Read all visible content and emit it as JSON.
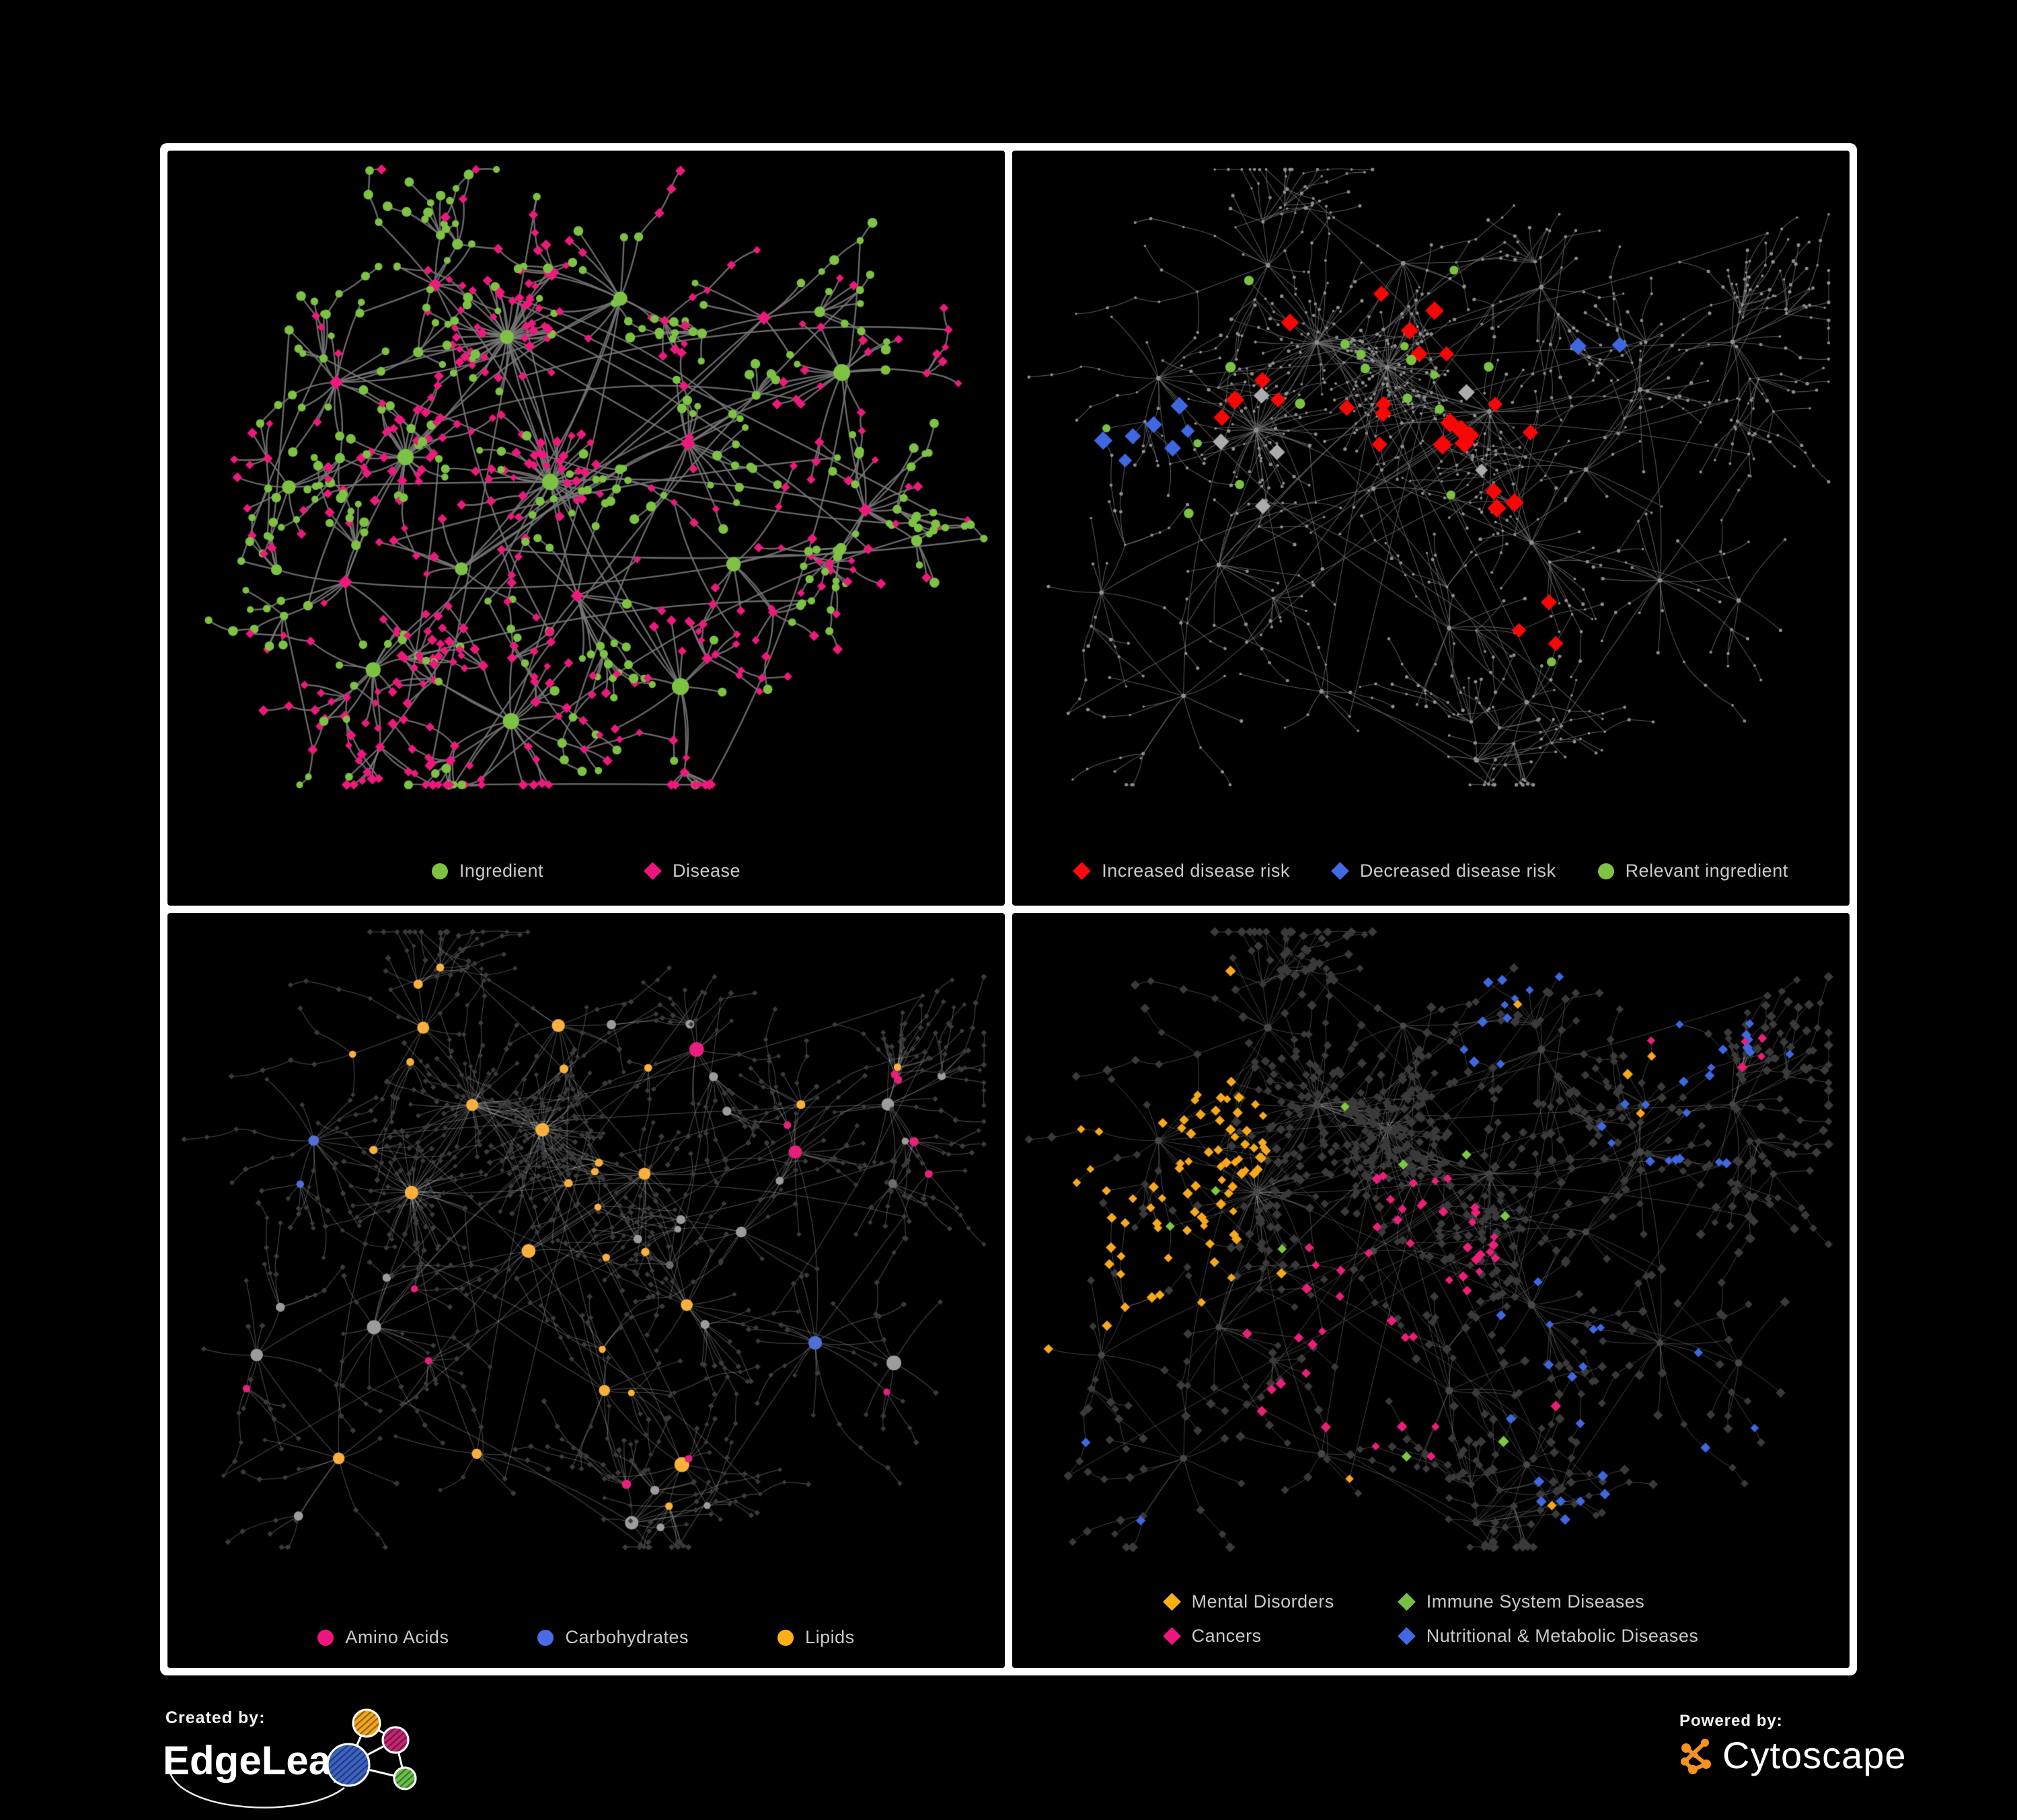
{
  "branding": {
    "created_by": "Created by:",
    "edgeleap_name": "EdgeLeap",
    "powered_by": "Powered by:",
    "cytoscape_name": "Cytoscape",
    "cytoscape_orange": "#F6921E",
    "edgeleap_node_colors": {
      "blue": "#3B62C4",
      "orange": "#F2A71B",
      "pink": "#C52571",
      "green": "#6ABF4B"
    },
    "frame_color": "#ffffff",
    "background": "#000000"
  },
  "panels": [
    {
      "idx": 0,
      "name": "ingredient-disease-network",
      "legend": [
        {
          "shape": "circle",
          "color": "#7DC242",
          "label": "Ingredient"
        },
        {
          "shape": "diamond",
          "color": "#EF157E",
          "label": "Disease"
        }
      ],
      "style": {
        "kind": "bipartite",
        "green": "#7DC242",
        "pink": "#ED197D",
        "hubGreenProb": 0.55,
        "leafOppositeProb": 0.8,
        "edge": {
          "color": "#787878",
          "width": 2.4,
          "alpha": 0.88,
          "curve": 0.14
        }
      },
      "net": {
        "seed": 7,
        "aspect": 1.108,
        "clampY": 0.84,
        "superHubs": 3,
        "kids": [
          6,
          17
        ],
        "superKids": [
          28,
          46
        ],
        "subProb": 0.2,
        "chainProb": 0.38,
        "extraEdges": 26,
        "hubs": [
          [
            0.42,
            0.26
          ],
          [
            0.27,
            0.4
          ],
          [
            0.46,
            0.44
          ],
          [
            0.2,
            0.3
          ],
          [
            0.33,
            0.17
          ],
          [
            0.55,
            0.2
          ],
          [
            0.35,
            0.56
          ],
          [
            0.22,
            0.56
          ],
          [
            0.5,
            0.6
          ],
          [
            0.62,
            0.38
          ],
          [
            0.7,
            0.22
          ],
          [
            0.8,
            0.28
          ],
          [
            0.6,
            0.7
          ],
          [
            0.42,
            0.76
          ],
          [
            0.26,
            0.7
          ],
          [
            0.68,
            0.55
          ],
          [
            0.82,
            0.47
          ],
          [
            0.15,
            0.45
          ]
        ]
      },
      "overlays": []
    },
    {
      "idx": 1,
      "name": "disease-risk-network",
      "legend": [
        {
          "shape": "diamond",
          "color": "#FA0A0A",
          "label": "Increased disease risk"
        },
        {
          "shape": "diamond",
          "color": "#4169E1",
          "label": "Decreased disease risk"
        },
        {
          "shape": "circle",
          "color": "#7DC242",
          "label": "Relevant ingredient"
        }
      ],
      "style": {
        "kind": "risk",
        "dot": "#8F8F8F",
        "edge": {
          "color": "#6E6E6E",
          "width": 1.05,
          "alpha": 0.8,
          "curve": 0.1
        }
      },
      "net": {
        "seed": 23,
        "aspect": 1.108,
        "clampY": 0.84,
        "superHubs": 3,
        "kids": [
          5,
          15
        ],
        "superKids": [
          30,
          52
        ],
        "subProb": 0.24,
        "chainProb": 0.5,
        "extraEdges": 30,
        "hubs": [
          [
            0.46,
            0.3
          ],
          [
            0.36,
            0.26
          ],
          [
            0.3,
            0.37
          ],
          [
            0.56,
            0.36
          ],
          [
            0.44,
            0.46
          ],
          [
            0.61,
            0.52
          ],
          [
            0.26,
            0.55
          ],
          [
            0.16,
            0.31
          ],
          [
            0.64,
            0.19
          ],
          [
            0.76,
            0.31
          ],
          [
            0.86,
            0.24
          ],
          [
            0.51,
            0.62
          ],
          [
            0.36,
            0.71
          ],
          [
            0.62,
            0.73
          ],
          [
            0.76,
            0.56
          ],
          [
            0.21,
            0.71
          ],
          [
            0.47,
            0.14
          ],
          [
            0.3,
            0.14
          ],
          [
            0.7,
            0.42
          ],
          [
            0.86,
            0.6
          ],
          [
            0.12,
            0.6
          ],
          [
            0.55,
            0.82
          ]
        ]
      },
      "overlays": [
        {
          "shape": "diamond",
          "color": "#F80707",
          "size": 13,
          "count": 24,
          "spread": 0.12,
          "anchors": [
            [
              0.42,
              0.33
            ],
            [
              0.3,
              0.3
            ],
            [
              0.5,
              0.44
            ],
            [
              0.56,
              0.32
            ],
            [
              0.45,
              0.22
            ]
          ]
        },
        {
          "shape": "diamond",
          "color": "#F80707",
          "size": 12,
          "count": 3,
          "spread": 0.07,
          "anchors": [
            [
              0.6,
              0.63
            ]
          ]
        },
        {
          "shape": "diamond",
          "color": "#3E68E1",
          "size": 12,
          "count": 7,
          "spread": 0.06,
          "anchors": [
            [
              0.18,
              0.33
            ],
            [
              0.15,
              0.36
            ]
          ]
        },
        {
          "shape": "diamond",
          "color": "#3E68E1",
          "size": 12,
          "count": 2,
          "spread": 0.035,
          "anchors": [
            [
              0.7,
              0.26
            ]
          ]
        },
        {
          "shape": "diamond",
          "color": "#ACACAC",
          "size": 11,
          "count": 6,
          "spread": 0.09,
          "anchors": [
            [
              0.12,
              0.3
            ],
            [
              0.33,
              0.4
            ],
            [
              0.44,
              0.4
            ],
            [
              0.52,
              0.38
            ]
          ]
        },
        {
          "shape": "circle",
          "color": "#7CC242",
          "size": 7,
          "count": 16,
          "spread": 0.13,
          "anchors": [
            [
              0.33,
              0.33
            ],
            [
              0.45,
              0.38
            ],
            [
              0.27,
              0.27
            ],
            [
              0.49,
              0.28
            ]
          ]
        },
        {
          "shape": "circle",
          "color": "#7CC242",
          "size": 7,
          "count": 3,
          "spread": 0.045,
          "anchors": [
            [
              0.13,
              0.38
            ],
            [
              0.63,
              0.66
            ],
            [
              0.25,
              0.47
            ]
          ]
        }
      ]
    },
    {
      "idx": 2,
      "name": "nutrient-class-network",
      "legend": [
        {
          "shape": "circle",
          "color": "#EF157E",
          "label": "Amino Acids"
        },
        {
          "shape": "circle",
          "color": "#4A6AE8",
          "label": "Carbohydrates"
        },
        {
          "shape": "circle",
          "color": "#FBB116",
          "label": "Lipids"
        }
      ],
      "style": {
        "kind": "nutrient",
        "circleGray": "#9C9C9C",
        "diamondGray": "#3B3B3B",
        "edge": {
          "color": "#C8C8C8",
          "width": 1.25,
          "alpha": 0.32,
          "curve": 0.12
        }
      },
      "net": {
        "seed": 23,
        "aspect": 1.108,
        "clampY": 0.84,
        "superHubs": 3,
        "kids": [
          5,
          15
        ],
        "superKids": [
          30,
          52
        ],
        "subProb": 0.24,
        "chainProb": 0.5,
        "extraEdges": 30,
        "hubs": [
          [
            0.46,
            0.3
          ],
          [
            0.36,
            0.26
          ],
          [
            0.3,
            0.37
          ],
          [
            0.56,
            0.36
          ],
          [
            0.44,
            0.46
          ],
          [
            0.61,
            0.52
          ],
          [
            0.26,
            0.55
          ],
          [
            0.16,
            0.31
          ],
          [
            0.64,
            0.19
          ],
          [
            0.76,
            0.31
          ],
          [
            0.86,
            0.24
          ],
          [
            0.51,
            0.62
          ],
          [
            0.36,
            0.71
          ],
          [
            0.62,
            0.73
          ],
          [
            0.76,
            0.56
          ],
          [
            0.21,
            0.71
          ],
          [
            0.47,
            0.14
          ],
          [
            0.3,
            0.14
          ],
          [
            0.7,
            0.42
          ],
          [
            0.86,
            0.6
          ],
          [
            0.12,
            0.6
          ],
          [
            0.55,
            0.82
          ]
        ]
      },
      "overlays": [
        {
          "types": [
            "hub",
            "sub"
          ],
          "color": "#FBB03B",
          "count": 40,
          "spread": 0.14,
          "anchors": [
            [
              0.4,
              0.22
            ],
            [
              0.33,
              0.3
            ],
            [
              0.5,
              0.3
            ],
            [
              0.46,
              0.56
            ],
            [
              0.27,
              0.17
            ]
          ]
        },
        {
          "types": [
            "hub",
            "sub"
          ],
          "color": "#FBB03B",
          "count": 8,
          "spread": 0.3,
          "anchors": [
            [
              0.65,
              0.55
            ],
            [
              0.55,
              0.7
            ],
            [
              0.15,
              0.72
            ],
            [
              0.75,
              0.45
            ]
          ]
        },
        {
          "types": [
            "hub",
            "sub"
          ],
          "color": "#EA1E7C",
          "count": 13,
          "spread": 0.3,
          "anchors": [
            [
              0.1,
              0.52
            ],
            [
              0.5,
              0.74
            ],
            [
              0.65,
              0.62
            ],
            [
              0.25,
              0.2
            ],
            [
              0.78,
              0.3
            ],
            [
              0.4,
              0.83
            ],
            [
              0.2,
              0.82
            ]
          ]
        },
        {
          "types": [
            "hub",
            "sub"
          ],
          "color": "#5070D8",
          "count": 8,
          "spread": 0.1,
          "anchors": [
            [
              0.36,
              0.26
            ],
            [
              0.42,
              0.47
            ],
            [
              0.73,
              0.62
            ],
            [
              0.08,
              0.3
            ]
          ]
        }
      ]
    },
    {
      "idx": 3,
      "name": "disease-category-network",
      "legend": [
        {
          "shape": "diamond",
          "color": "#F9B112",
          "label": "Mental Disorders"
        },
        {
          "shape": "diamond",
          "color": "#77C043",
          "label": "Immune System Diseases"
        },
        {
          "shape": "diamond",
          "color": "#EF157E",
          "label": "Cancers"
        },
        {
          "shape": "diamond",
          "color": "#4169E1",
          "label": "Nutritional & Metabolic Diseases"
        }
      ],
      "style": {
        "kind": "classes",
        "diamondGray": "#3A3A3A",
        "hubGray": "#474747",
        "edge": {
          "color": "#9A9A9A",
          "width": 1.0,
          "alpha": 0.42,
          "curve": 0.1
        }
      },
      "net": {
        "seed": 23,
        "aspect": 1.108,
        "clampY": 0.84,
        "superHubs": 3,
        "kids": [
          5,
          15
        ],
        "superKids": [
          30,
          52
        ],
        "subProb": 0.24,
        "chainProb": 0.5,
        "extraEdges": 30,
        "hubs": [
          [
            0.46,
            0.3
          ],
          [
            0.36,
            0.26
          ],
          [
            0.3,
            0.37
          ],
          [
            0.56,
            0.36
          ],
          [
            0.44,
            0.46
          ],
          [
            0.61,
            0.52
          ],
          [
            0.26,
            0.55
          ],
          [
            0.16,
            0.31
          ],
          [
            0.64,
            0.19
          ],
          [
            0.76,
            0.31
          ],
          [
            0.86,
            0.24
          ],
          [
            0.51,
            0.62
          ],
          [
            0.36,
            0.71
          ],
          [
            0.62,
            0.73
          ],
          [
            0.76,
            0.56
          ],
          [
            0.21,
            0.71
          ],
          [
            0.47,
            0.14
          ],
          [
            0.3,
            0.14
          ],
          [
            0.7,
            0.42
          ],
          [
            0.86,
            0.6
          ],
          [
            0.12,
            0.6
          ],
          [
            0.55,
            0.82
          ]
        ]
      },
      "overlays": [
        {
          "types": [
            "leaf",
            "chain",
            "sub"
          ],
          "shape": "diamond",
          "color": "#F7A81B",
          "size": 7,
          "count": 80,
          "spread": 0.11,
          "anchors": [
            [
              0.13,
              0.38
            ],
            [
              0.2,
              0.31
            ],
            [
              0.09,
              0.48
            ],
            [
              0.17,
              0.45
            ]
          ]
        },
        {
          "types": [
            "leaf",
            "chain",
            "sub"
          ],
          "shape": "diamond",
          "color": "#F7A81B",
          "size": 7,
          "count": 8,
          "spread": 0.3,
          "anchors": [
            [
              0.4,
              0.15
            ],
            [
              0.55,
              0.72
            ],
            [
              0.3,
              0.7
            ],
            [
              0.6,
              0.2
            ]
          ]
        },
        {
          "types": [
            "leaf",
            "chain",
            "sub"
          ],
          "shape": "diamond",
          "color": "#EC1E79",
          "size": 7,
          "count": 48,
          "spread": 0.1,
          "anchors": [
            [
              0.41,
              0.52
            ],
            [
              0.48,
              0.44
            ],
            [
              0.36,
              0.6
            ],
            [
              0.45,
              0.62
            ]
          ]
        },
        {
          "types": [
            "leaf",
            "chain",
            "sub"
          ],
          "shape": "diamond",
          "color": "#EC1E79",
          "size": 7,
          "count": 7,
          "spread": 0.2,
          "anchors": [
            [
              0.75,
              0.25
            ],
            [
              0.88,
              0.28
            ],
            [
              0.25,
              0.83
            ],
            [
              0.65,
              0.83
            ]
          ]
        },
        {
          "types": [
            "leaf",
            "chain",
            "sub"
          ],
          "shape": "diamond",
          "color": "#3E68E1",
          "size": 7,
          "count": 55,
          "spread": 0.08,
          "anchors": [
            [
              0.58,
              0.6
            ],
            [
              0.64,
              0.56
            ],
            [
              0.78,
              0.3
            ],
            [
              0.86,
              0.18
            ],
            [
              0.7,
              0.75
            ],
            [
              0.87,
              0.55
            ],
            [
              0.36,
              0.83
            ],
            [
              0.16,
              0.73
            ],
            [
              0.6,
              0.14
            ],
            [
              0.84,
              0.7
            ]
          ]
        },
        {
          "types": [
            "leaf",
            "chain",
            "sub"
          ],
          "shape": "diamond",
          "color": "#7CC93F",
          "size": 7.5,
          "count": 9,
          "spread": 0.22,
          "anchors": [
            [
              0.44,
              0.36
            ],
            [
              0.54,
              0.54
            ],
            [
              0.32,
              0.46
            ],
            [
              0.48,
              0.7
            ]
          ]
        }
      ]
    }
  ]
}
